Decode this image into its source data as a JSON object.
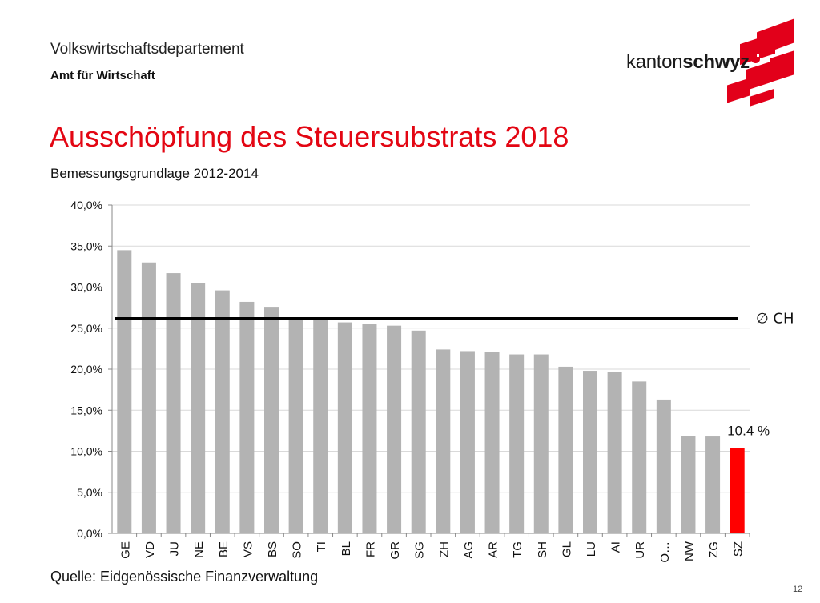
{
  "header": {
    "department": "Volkswirtschaftsdepartement",
    "office": "Amt für Wirtschaft"
  },
  "logo": {
    "text_regular": "kanton",
    "text_bold": "schwyz",
    "color": "#e2001a"
  },
  "slide": {
    "title": "Ausschöpfung des Steuersubstrats 2018",
    "subtitle": "Bemessungsgrundlage 2012-2014",
    "source": "Quelle: Eidgenössische Finanzverwaltung",
    "page_number": "12"
  },
  "chart_data": {
    "type": "bar",
    "categories": [
      "GE",
      "VD",
      "JU",
      "NE",
      "BE",
      "VS",
      "BS",
      "SO",
      "TI",
      "BL",
      "FR",
      "GR",
      "SG",
      "ZH",
      "AG",
      "AR",
      "TG",
      "SH",
      "GL",
      "LU",
      "AI",
      "UR",
      "O…",
      "NW",
      "ZG",
      "SZ"
    ],
    "values": [
      34.5,
      33.0,
      31.7,
      30.5,
      29.6,
      28.2,
      27.6,
      26.3,
      26.2,
      25.7,
      25.5,
      25.3,
      24.7,
      22.4,
      22.2,
      22.1,
      21.8,
      21.8,
      20.3,
      19.8,
      19.7,
      18.5,
      16.3,
      11.9,
      11.8,
      10.4
    ],
    "ylim": [
      0,
      40
    ],
    "y_ticks": [
      "0,0%",
      "5,0%",
      "10,0%",
      "15,0%",
      "20,0%",
      "25,0%",
      "30,0%",
      "35,0%",
      "40,0%"
    ],
    "grid": true,
    "bar_color": "#b3b3b3",
    "highlight_color": "#ff0000",
    "highlight_category": "SZ",
    "reference_line": {
      "value": 26.2,
      "label": "∅ CH",
      "color": "#000000"
    },
    "annotation": {
      "text": "10.4 %",
      "category": "SZ"
    }
  }
}
